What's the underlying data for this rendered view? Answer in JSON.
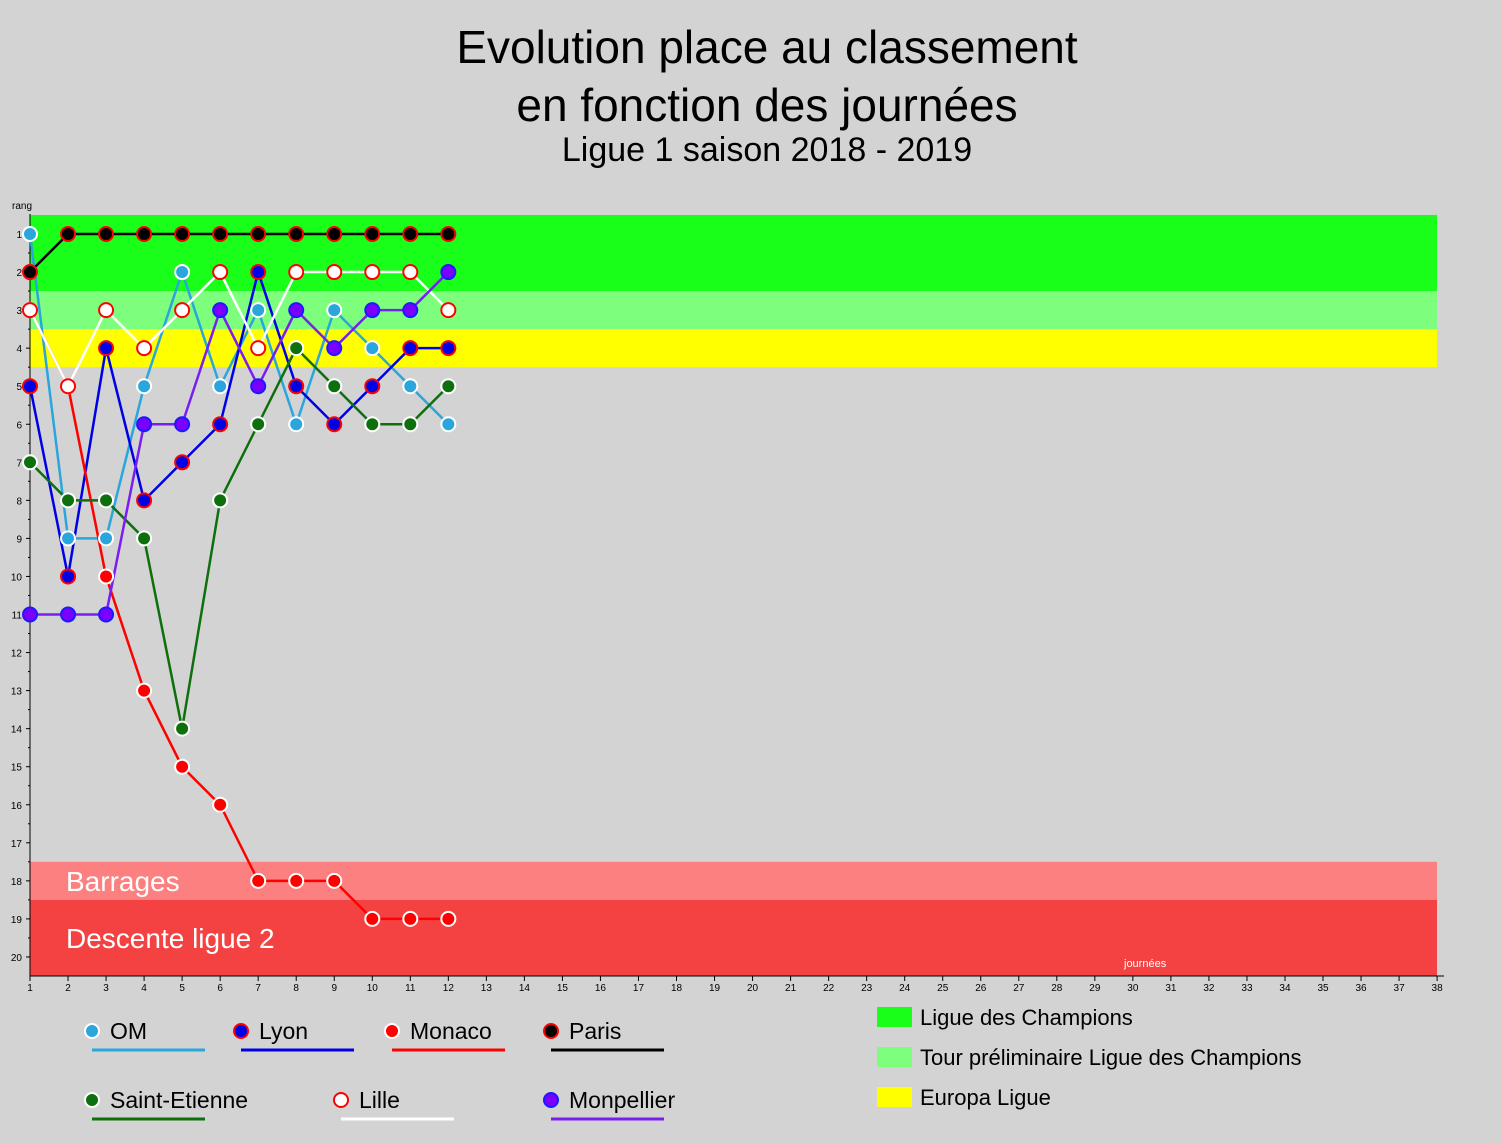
{
  "title": {
    "line1": "Evolution place au classement",
    "line2": "en fonction des journées",
    "line3": "Ligue 1 saison 2018 - 2019"
  },
  "chart_data": {
    "type": "line",
    "ylabel": "rang",
    "xlabel": "journées",
    "xlim": [
      1,
      38
    ],
    "ylim": [
      1,
      20
    ],
    "y_inverted": true,
    "x_ticks": [
      1,
      2,
      3,
      4,
      5,
      6,
      7,
      8,
      9,
      10,
      11,
      12,
      13,
      14,
      15,
      16,
      17,
      18,
      19,
      20,
      21,
      22,
      23,
      24,
      25,
      26,
      27,
      28,
      29,
      30,
      31,
      32,
      33,
      34,
      35,
      36,
      37,
      38
    ],
    "y_ticks": [
      1,
      2,
      3,
      4,
      5,
      6,
      7,
      8,
      9,
      10,
      11,
      12,
      13,
      14,
      15,
      16,
      17,
      18,
      19,
      20
    ],
    "zones": [
      {
        "name": "Ligue des Champions",
        "from": 0.5,
        "to": 2.5,
        "color": "#19ff19",
        "show_in_legend": true,
        "label_on_chart": false
      },
      {
        "name": "Tour préliminaire Ligue des Champions",
        "from": 2.5,
        "to": 3.5,
        "color": "#7dff7d",
        "show_in_legend": true,
        "label_on_chart": false
      },
      {
        "name": "Europa Ligue",
        "from": 3.5,
        "to": 4.5,
        "color": "#ffff00",
        "show_in_legend": true,
        "label_on_chart": false
      },
      {
        "name": "Barrages",
        "from": 17.5,
        "to": 18.5,
        "color": "#fc8080",
        "show_in_legend": false,
        "label_on_chart": true
      },
      {
        "name": "Descente ligue 2",
        "from": 18.5,
        "to": 20.5,
        "color": "#f44242",
        "show_in_legend": false,
        "label_on_chart": true
      }
    ],
    "series": [
      {
        "name": "OM",
        "line_color": "#2aa6dc",
        "marker_fill": "#2aa6dc",
        "marker_stroke": "#ffffff",
        "x": [
          1,
          2,
          3,
          4,
          5,
          6,
          7,
          8,
          9,
          10,
          11,
          12
        ],
        "values": [
          1,
          9,
          9,
          5,
          2,
          5,
          3,
          6,
          3,
          4,
          5,
          6
        ]
      },
      {
        "name": "Lyon",
        "line_color": "#0000e6",
        "marker_fill": "#0000e6",
        "marker_stroke": "#ff0000",
        "x": [
          1,
          2,
          3,
          4,
          5,
          6,
          7,
          8,
          9,
          10,
          11,
          12
        ],
        "values": [
          5,
          10,
          4,
          8,
          7,
          6,
          2,
          5,
          6,
          5,
          4,
          4
        ]
      },
      {
        "name": "Monaco",
        "line_color": "#ff0000",
        "marker_fill": "#ff0000",
        "marker_stroke": "#ffffff",
        "x": [
          1,
          2,
          3,
          4,
          5,
          6,
          7,
          8,
          9,
          10,
          11,
          12
        ],
        "values": [
          3,
          5,
          10,
          13,
          15,
          16,
          18,
          18,
          18,
          19,
          19,
          19
        ]
      },
      {
        "name": "Paris",
        "line_color": "#000000",
        "marker_fill": "#000000",
        "marker_stroke": "#ff0000",
        "x": [
          1,
          2,
          3,
          4,
          5,
          6,
          7,
          8,
          9,
          10,
          11,
          12
        ],
        "values": [
          2,
          1,
          1,
          1,
          1,
          1,
          1,
          1,
          1,
          1,
          1,
          1
        ]
      },
      {
        "name": "Saint-Etienne",
        "line_color": "#0d700d",
        "marker_fill": "#0d700d",
        "marker_stroke": "#ffffff",
        "x": [
          1,
          2,
          3,
          4,
          5,
          6,
          7,
          8,
          9,
          10,
          11,
          12
        ],
        "values": [
          7,
          8,
          8,
          9,
          14,
          8,
          6,
          4,
          5,
          6,
          6,
          5
        ]
      },
      {
        "name": "Lille",
        "line_color": "#ffffff",
        "marker_fill": "#ffffff",
        "marker_stroke": "#ff0000",
        "x": [
          1,
          2,
          3,
          4,
          5,
          6,
          7,
          8,
          9,
          10,
          11,
          12
        ],
        "values": [
          3,
          5,
          3,
          4,
          3,
          2,
          4,
          2,
          2,
          2,
          2,
          3
        ]
      },
      {
        "name": "Monpellier",
        "line_color": "#7a1ef0",
        "marker_fill": "#7a00ff",
        "marker_stroke": "#1a1aff",
        "x": [
          1,
          2,
          3,
          4,
          5,
          6,
          7,
          8,
          9,
          10,
          11,
          12
        ],
        "values": [
          11,
          11,
          11,
          6,
          6,
          3,
          5,
          3,
          4,
          3,
          3,
          2
        ]
      }
    ]
  }
}
